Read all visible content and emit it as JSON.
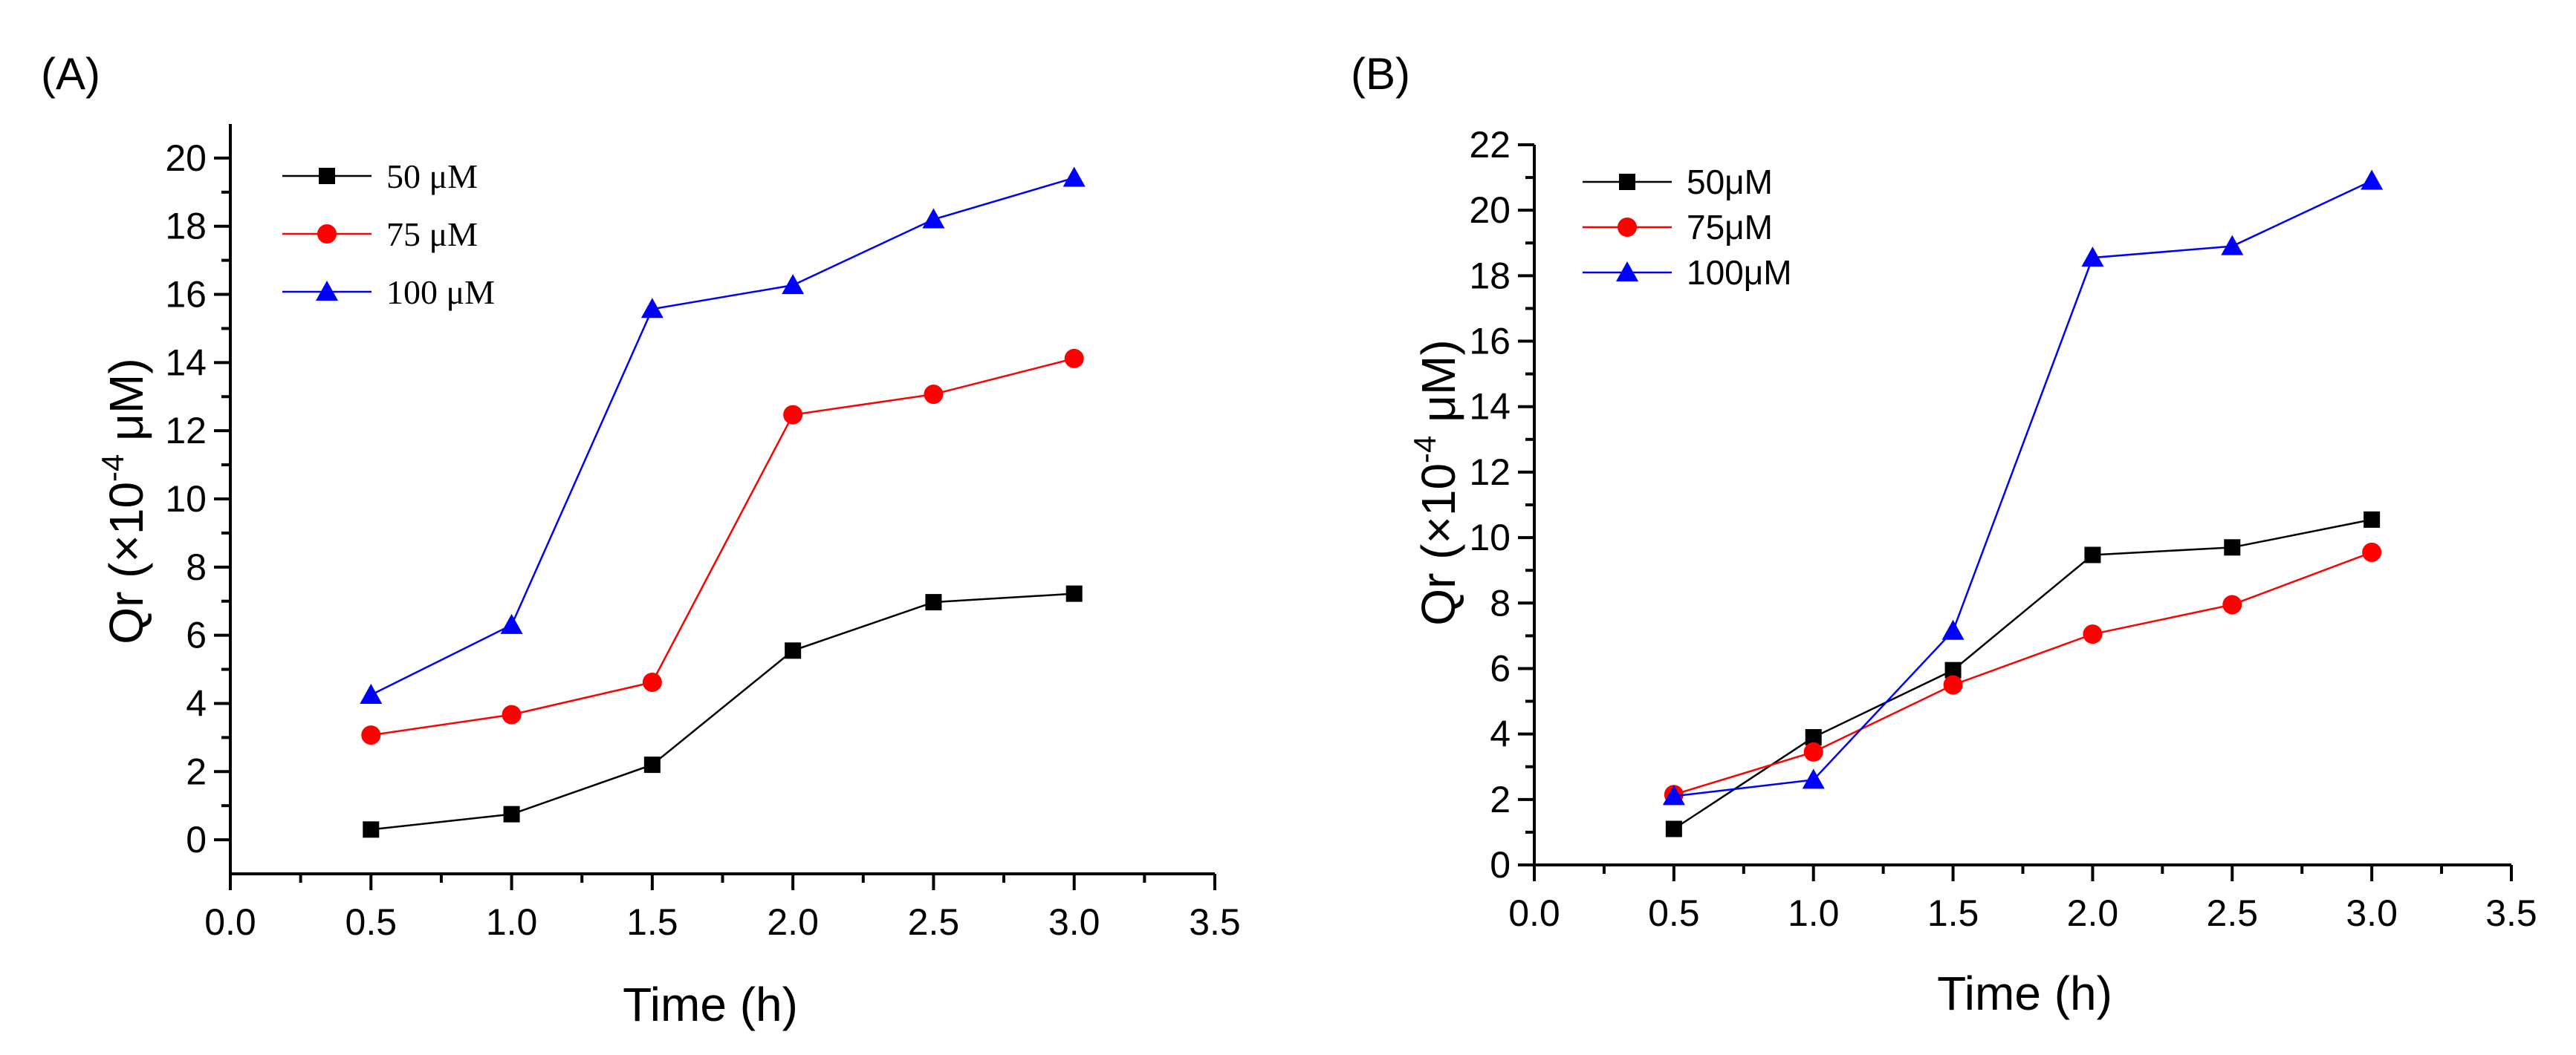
{
  "chart_data": [
    {
      "panel": "(A)",
      "type": "line",
      "x": [
        0.5,
        1.0,
        1.5,
        2.0,
        2.5,
        3.0
      ],
      "xlim": [
        0,
        3.5
      ],
      "ylim": [
        -1,
        21
      ],
      "xticks": [
        "0.0",
        "0.5",
        "1.0",
        "1.5",
        "2.0",
        "2.5",
        "3.0",
        "3.5"
      ],
      "yticks": [
        "0",
        "2",
        "4",
        "6",
        "8",
        "10",
        "12",
        "14",
        "16",
        "18",
        "20"
      ],
      "xlabel": "Time (h)",
      "ylabel": "Qr (×10-4 μM)",
      "ylabel_main": "Qr (×10",
      "ylabel_sup": "-4",
      "ylabel_tail": " μM)",
      "legend_position": "top-left",
      "series": [
        {
          "name": "50 μM",
          "color": "#000000",
          "marker": "square",
          "values": [
            0.3,
            0.75,
            2.2,
            5.55,
            6.97,
            7.22
          ]
        },
        {
          "name": "75 μM",
          "color": "#ff0000",
          "marker": "circle",
          "values": [
            3.07,
            3.67,
            4.62,
            12.47,
            13.07,
            14.12
          ]
        },
        {
          "name": "100 μM",
          "color": "#0000ff",
          "marker": "triangle",
          "values": [
            4.25,
            6.3,
            15.57,
            16.27,
            18.2,
            19.42
          ]
        }
      ]
    },
    {
      "panel": "(B)",
      "type": "line",
      "x": [
        0.5,
        1.0,
        1.5,
        2.0,
        2.5,
        3.0
      ],
      "xlim": [
        0,
        3.5
      ],
      "ylim": [
        0,
        22
      ],
      "xticks": [
        "0.0",
        "0.5",
        "1.0",
        "1.5",
        "2.0",
        "2.5",
        "3.0",
        "3.5"
      ],
      "yticks": [
        "0",
        "2",
        "4",
        "6",
        "8",
        "10",
        "12",
        "14",
        "16",
        "18",
        "20",
        "22"
      ],
      "xlabel": "Time (h)",
      "ylabel": "Qr (×10-4 μM)",
      "ylabel_main": "Qr (×10",
      "ylabel_sup": "-4",
      "ylabel_tail": " μM)",
      "legend_position": "top-left",
      "series": [
        {
          "name": "50μM",
          "color": "#000000",
          "marker": "square",
          "values": [
            1.1,
            3.9,
            5.95,
            9.47,
            9.7,
            10.55
          ]
        },
        {
          "name": "75μM",
          "color": "#ff0000",
          "marker": "circle",
          "values": [
            2.15,
            3.45,
            5.5,
            7.05,
            7.95,
            9.55
          ]
        },
        {
          "name": "100μM",
          "color": "#0000ff",
          "marker": "triangle",
          "values": [
            2.1,
            2.6,
            7.15,
            18.55,
            18.9,
            20.9
          ]
        }
      ]
    }
  ]
}
